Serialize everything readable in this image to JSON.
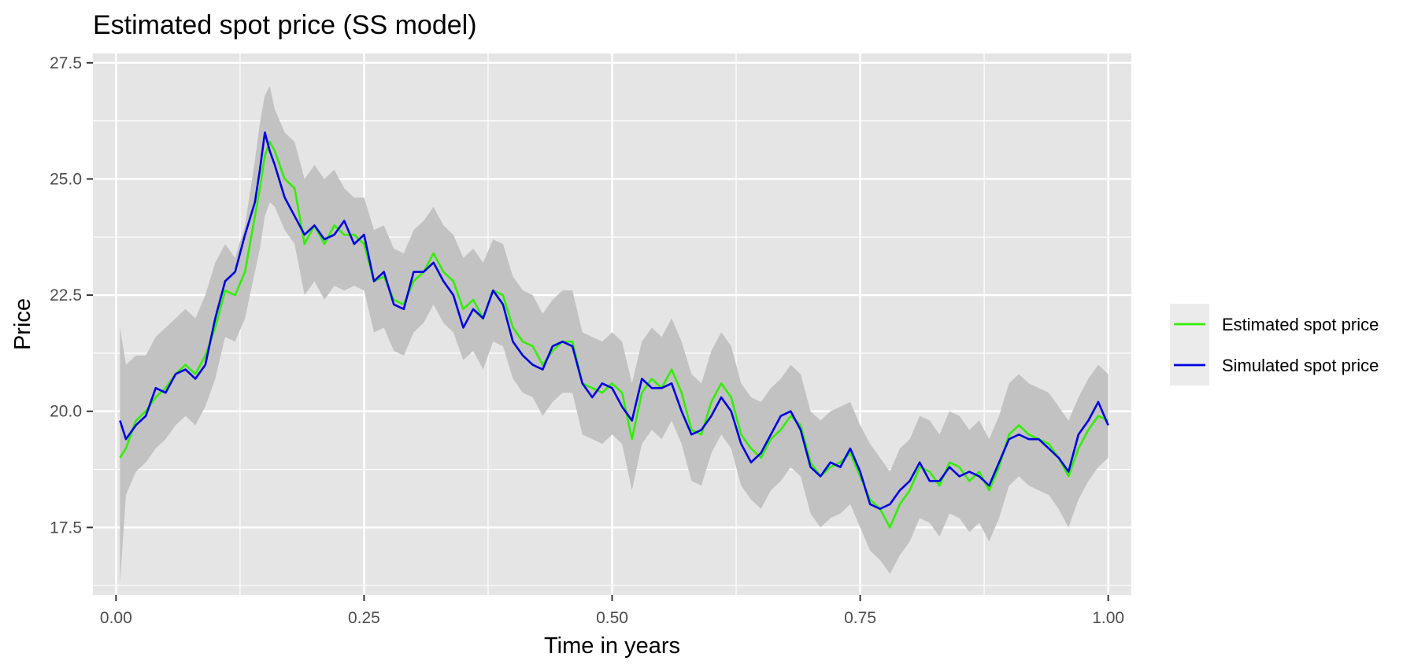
{
  "chart_data": {
    "type": "line",
    "title": "Estimated spot price (SS model)",
    "xlabel": "Time in years",
    "ylabel": "Price",
    "xlim": [
      -0.0233,
      1.0233
    ],
    "ylim": [
      16.05,
      27.7
    ],
    "x_ticks": [
      0.0,
      0.25,
      0.5,
      0.75,
      1.0
    ],
    "x_tick_labels": [
      "0.00",
      "0.25",
      "0.50",
      "0.75",
      "1.00"
    ],
    "y_ticks": [
      17.5,
      20.0,
      22.5,
      25.0,
      27.5
    ],
    "y_tick_labels": [
      "17.5",
      "20.0",
      "22.5",
      "25.0",
      "27.5"
    ],
    "grid": true,
    "legend_position": "right",
    "colors": {
      "panel": "#e5e5e5",
      "grid": "#ffffff",
      "band": "#c2c2c2",
      "legend_key_bg": "#ebebeb"
    },
    "series": [
      {
        "name": "Estimated spot price",
        "color": "#33ee00",
        "x": [
          0.004,
          0.01,
          0.02,
          0.03,
          0.04,
          0.05,
          0.06,
          0.07,
          0.08,
          0.09,
          0.1,
          0.11,
          0.12,
          0.13,
          0.14,
          0.145,
          0.15,
          0.155,
          0.16,
          0.17,
          0.18,
          0.19,
          0.2,
          0.21,
          0.22,
          0.23,
          0.24,
          0.25,
          0.26,
          0.27,
          0.28,
          0.29,
          0.3,
          0.31,
          0.32,
          0.33,
          0.34,
          0.35,
          0.36,
          0.37,
          0.38,
          0.39,
          0.4,
          0.41,
          0.42,
          0.43,
          0.44,
          0.45,
          0.46,
          0.47,
          0.48,
          0.49,
          0.5,
          0.51,
          0.52,
          0.53,
          0.54,
          0.55,
          0.56,
          0.57,
          0.58,
          0.59,
          0.6,
          0.61,
          0.62,
          0.63,
          0.64,
          0.65,
          0.66,
          0.67,
          0.68,
          0.69,
          0.7,
          0.71,
          0.72,
          0.73,
          0.74,
          0.75,
          0.76,
          0.77,
          0.78,
          0.79,
          0.8,
          0.81,
          0.82,
          0.83,
          0.84,
          0.85,
          0.86,
          0.87,
          0.88,
          0.89,
          0.9,
          0.91,
          0.92,
          0.93,
          0.94,
          0.95,
          0.96,
          0.97,
          0.98,
          0.99,
          1.0
        ],
        "y": [
          19.0,
          19.2,
          19.8,
          20.0,
          20.3,
          20.5,
          20.8,
          21.0,
          20.8,
          21.2,
          21.8,
          22.6,
          22.5,
          23.0,
          24.2,
          24.8,
          25.5,
          25.8,
          25.6,
          25.0,
          24.8,
          23.6,
          24.0,
          23.6,
          24.0,
          23.8,
          23.8,
          23.6,
          22.8,
          22.9,
          22.4,
          22.3,
          22.8,
          23.0,
          23.4,
          23.0,
          22.8,
          22.2,
          22.4,
          22.0,
          22.6,
          22.5,
          21.8,
          21.5,
          21.4,
          21.0,
          21.3,
          21.5,
          21.5,
          20.6,
          20.5,
          20.4,
          20.6,
          20.4,
          19.4,
          20.4,
          20.7,
          20.5,
          20.9,
          20.4,
          19.6,
          19.5,
          20.2,
          20.6,
          20.3,
          19.5,
          19.2,
          19.0,
          19.4,
          19.6,
          19.9,
          19.7,
          18.9,
          18.6,
          18.8,
          18.9,
          19.1,
          18.6,
          18.1,
          17.9,
          17.5,
          18.0,
          18.3,
          18.8,
          18.7,
          18.4,
          18.9,
          18.8,
          18.5,
          18.7,
          18.3,
          18.8,
          19.5,
          19.7,
          19.5,
          19.4,
          19.3,
          19.0,
          18.6,
          19.2,
          19.6,
          19.9,
          19.8
        ]
      },
      {
        "name": "Simulated spot price",
        "color": "#0000dd",
        "x": [
          0.004,
          0.01,
          0.02,
          0.03,
          0.04,
          0.05,
          0.06,
          0.07,
          0.08,
          0.09,
          0.1,
          0.11,
          0.12,
          0.13,
          0.14,
          0.145,
          0.15,
          0.155,
          0.16,
          0.17,
          0.18,
          0.19,
          0.2,
          0.21,
          0.22,
          0.23,
          0.24,
          0.25,
          0.26,
          0.27,
          0.28,
          0.29,
          0.3,
          0.31,
          0.32,
          0.33,
          0.34,
          0.35,
          0.36,
          0.37,
          0.38,
          0.39,
          0.4,
          0.41,
          0.42,
          0.43,
          0.44,
          0.45,
          0.46,
          0.47,
          0.48,
          0.49,
          0.5,
          0.51,
          0.52,
          0.53,
          0.54,
          0.55,
          0.56,
          0.57,
          0.58,
          0.59,
          0.6,
          0.61,
          0.62,
          0.63,
          0.64,
          0.65,
          0.66,
          0.67,
          0.68,
          0.69,
          0.7,
          0.71,
          0.72,
          0.73,
          0.74,
          0.75,
          0.76,
          0.77,
          0.78,
          0.79,
          0.8,
          0.81,
          0.82,
          0.83,
          0.84,
          0.85,
          0.86,
          0.87,
          0.88,
          0.89,
          0.9,
          0.91,
          0.92,
          0.93,
          0.94,
          0.95,
          0.96,
          0.97,
          0.98,
          0.99,
          1.0
        ],
        "y": [
          19.8,
          19.4,
          19.7,
          19.9,
          20.5,
          20.4,
          20.8,
          20.9,
          20.7,
          21.0,
          22.0,
          22.8,
          23.0,
          23.8,
          24.5,
          25.2,
          26.0,
          25.6,
          25.3,
          24.6,
          24.2,
          23.8,
          24.0,
          23.7,
          23.8,
          24.1,
          23.6,
          23.8,
          22.8,
          23.0,
          22.3,
          22.2,
          23.0,
          23.0,
          23.2,
          22.8,
          22.5,
          21.8,
          22.2,
          22.0,
          22.6,
          22.3,
          21.5,
          21.2,
          21.0,
          20.9,
          21.4,
          21.5,
          21.4,
          20.6,
          20.3,
          20.6,
          20.5,
          20.1,
          19.8,
          20.7,
          20.5,
          20.5,
          20.6,
          20.0,
          19.5,
          19.6,
          19.9,
          20.3,
          20.0,
          19.3,
          18.9,
          19.1,
          19.5,
          19.9,
          20.0,
          19.6,
          18.8,
          18.6,
          18.9,
          18.8,
          19.2,
          18.7,
          18.0,
          17.9,
          18.0,
          18.3,
          18.5,
          18.9,
          18.5,
          18.5,
          18.8,
          18.6,
          18.7,
          18.6,
          18.4,
          18.9,
          19.4,
          19.5,
          19.4,
          19.4,
          19.2,
          19.0,
          18.7,
          19.5,
          19.8,
          20.2,
          19.7
        ]
      }
    ],
    "band": {
      "x": [
        0.004,
        0.01,
        0.02,
        0.03,
        0.04,
        0.05,
        0.06,
        0.07,
        0.08,
        0.09,
        0.1,
        0.11,
        0.12,
        0.13,
        0.14,
        0.145,
        0.15,
        0.155,
        0.16,
        0.17,
        0.18,
        0.19,
        0.2,
        0.21,
        0.22,
        0.23,
        0.24,
        0.25,
        0.26,
        0.27,
        0.28,
        0.29,
        0.3,
        0.31,
        0.32,
        0.33,
        0.34,
        0.35,
        0.36,
        0.37,
        0.38,
        0.39,
        0.4,
        0.41,
        0.42,
        0.43,
        0.44,
        0.45,
        0.46,
        0.47,
        0.48,
        0.49,
        0.5,
        0.51,
        0.52,
        0.53,
        0.54,
        0.55,
        0.56,
        0.57,
        0.58,
        0.59,
        0.6,
        0.61,
        0.62,
        0.63,
        0.64,
        0.65,
        0.66,
        0.67,
        0.68,
        0.69,
        0.7,
        0.71,
        0.72,
        0.73,
        0.74,
        0.75,
        0.76,
        0.77,
        0.78,
        0.79,
        0.8,
        0.81,
        0.82,
        0.83,
        0.84,
        0.85,
        0.86,
        0.87,
        0.88,
        0.89,
        0.9,
        0.91,
        0.92,
        0.93,
        0.94,
        0.95,
        0.96,
        0.97,
        0.98,
        0.99,
        1.0
      ],
      "upper": [
        21.8,
        21.0,
        21.2,
        21.2,
        21.6,
        21.8,
        22.0,
        22.2,
        22.0,
        22.5,
        23.2,
        23.6,
        23.3,
        24.0,
        25.4,
        26.2,
        26.8,
        27.0,
        26.5,
        26.0,
        25.8,
        25.0,
        25.3,
        25.0,
        25.2,
        24.8,
        24.6,
        24.6,
        23.9,
        24.0,
        23.5,
        23.4,
        23.9,
        24.1,
        24.4,
        24.0,
        23.8,
        23.3,
        23.5,
        23.2,
        23.7,
        23.6,
        22.9,
        22.6,
        22.5,
        22.1,
        22.4,
        22.6,
        22.6,
        21.7,
        21.6,
        21.5,
        21.7,
        21.5,
        20.6,
        21.5,
        21.8,
        21.6,
        22.0,
        21.5,
        20.8,
        20.6,
        21.3,
        21.7,
        21.4,
        20.6,
        20.3,
        20.2,
        20.5,
        20.7,
        21.0,
        20.8,
        20.0,
        19.8,
        20.0,
        20.1,
        20.2,
        19.7,
        19.3,
        19.0,
        18.7,
        19.2,
        19.4,
        19.9,
        19.8,
        19.5,
        20.0,
        19.9,
        19.6,
        19.8,
        19.4,
        19.9,
        20.6,
        20.8,
        20.6,
        20.5,
        20.4,
        20.1,
        19.8,
        20.3,
        20.7,
        21.0,
        20.8
      ],
      "lower": [
        16.3,
        18.2,
        18.7,
        18.9,
        19.2,
        19.4,
        19.7,
        19.9,
        19.7,
        20.1,
        20.7,
        21.6,
        21.5,
        22.0,
        23.0,
        23.5,
        24.2,
        24.5,
        24.4,
        23.9,
        23.6,
        22.5,
        22.8,
        22.4,
        22.7,
        22.6,
        22.7,
        22.6,
        21.7,
        21.8,
        21.3,
        21.2,
        21.7,
        21.9,
        22.3,
        21.9,
        21.7,
        21.1,
        21.3,
        20.9,
        21.5,
        21.4,
        20.7,
        20.4,
        20.3,
        19.9,
        20.2,
        20.4,
        20.4,
        19.5,
        19.4,
        19.3,
        19.5,
        19.3,
        18.3,
        19.3,
        19.6,
        19.4,
        19.8,
        19.3,
        18.5,
        18.4,
        19.1,
        19.5,
        19.2,
        18.4,
        18.1,
        17.9,
        18.3,
        18.5,
        18.8,
        18.6,
        17.8,
        17.5,
        17.7,
        17.8,
        18.0,
        17.5,
        17.0,
        16.8,
        16.5,
        16.9,
        17.2,
        17.7,
        17.6,
        17.3,
        17.8,
        17.7,
        17.4,
        17.6,
        17.2,
        17.7,
        18.4,
        18.6,
        18.4,
        18.3,
        18.2,
        17.9,
        17.5,
        18.1,
        18.5,
        18.8,
        19.0
      ]
    }
  }
}
